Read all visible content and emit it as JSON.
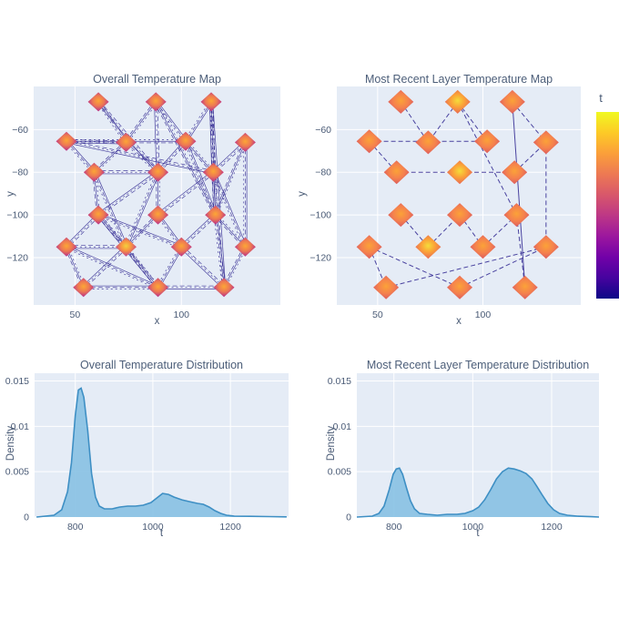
{
  "figure": {
    "background": "#ffffff",
    "plot_bg": "#e5ecf6",
    "grid_color": "#ffffff",
    "title_color": "#4c5e79",
    "tick_color": "#4a5b76",
    "edge_line_color": "#2e2590",
    "density_fill": "#87c1e3",
    "density_stroke": "#3e8fc4"
  },
  "colorbar": {
    "label": "t",
    "colors": [
      "#f0f921",
      "#fdca26",
      "#fb9f3a",
      "#ed7953",
      "#d8576b",
      "#bd3786",
      "#9c179e",
      "#7201a8",
      "#46039f",
      "#0d0887"
    ]
  },
  "chart_data": [
    {
      "id": "overall-map",
      "type": "scatter",
      "title": "Overall Temperature Map",
      "xlabel": "x",
      "ylabel": "y",
      "xlim": [
        30.6,
        146.5
      ],
      "ylim": [
        -142.2,
        -39.8
      ],
      "grid": true,
      "xticks": [
        {
          "v": 50,
          "label": "50"
        },
        {
          "v": 100,
          "label": "100"
        }
      ],
      "yticks": [
        {
          "v": -60,
          "label": "−60"
        },
        {
          "v": -80,
          "label": "−80"
        },
        {
          "v": -100,
          "label": "−100"
        },
        {
          "v": -120,
          "label": "−120"
        }
      ],
      "nodes": [
        [
          61,
          -47
        ],
        [
          88,
          -47
        ],
        [
          114,
          -47
        ],
        [
          46,
          -65.5
        ],
        [
          74,
          -66
        ],
        [
          102,
          -65.5
        ],
        [
          130,
          -66
        ],
        [
          59,
          -80
        ],
        [
          89,
          -80
        ],
        [
          115,
          -80
        ],
        [
          61,
          -100
        ],
        [
          89,
          -100
        ],
        [
          116,
          -100
        ],
        [
          46,
          -115
        ],
        [
          74,
          -115
        ],
        [
          100,
          -115
        ],
        [
          130,
          -115
        ],
        [
          54,
          -134
        ],
        [
          89,
          -134
        ],
        [
          120,
          -134
        ]
      ],
      "hot_nodes": [
        14
      ],
      "edges": [
        [
          0,
          4
        ],
        [
          0,
          8
        ],
        [
          1,
          4
        ],
        [
          1,
          5
        ],
        [
          1,
          8
        ],
        [
          1,
          12
        ],
        [
          2,
          5
        ],
        [
          2,
          9
        ],
        [
          2,
          12
        ],
        [
          2,
          19
        ],
        [
          3,
          4
        ],
        [
          3,
          5
        ],
        [
          3,
          7
        ],
        [
          3,
          9
        ],
        [
          4,
          7
        ],
        [
          4,
          8
        ],
        [
          5,
          8
        ],
        [
          5,
          9
        ],
        [
          5,
          12
        ],
        [
          6,
          9
        ],
        [
          6,
          12
        ],
        [
          6,
          16
        ],
        [
          7,
          8
        ],
        [
          7,
          10
        ],
        [
          7,
          14
        ],
        [
          8,
          10
        ],
        [
          8,
          11
        ],
        [
          8,
          14
        ],
        [
          9,
          11
        ],
        [
          9,
          12
        ],
        [
          9,
          16
        ],
        [
          10,
          13
        ],
        [
          10,
          14
        ],
        [
          10,
          15
        ],
        [
          10,
          18
        ],
        [
          11,
          14
        ],
        [
          11,
          15
        ],
        [
          12,
          15
        ],
        [
          12,
          16
        ],
        [
          12,
          19
        ],
        [
          13,
          14
        ],
        [
          13,
          17
        ],
        [
          13,
          18
        ],
        [
          14,
          17
        ],
        [
          14,
          18
        ],
        [
          15,
          18
        ],
        [
          15,
          19
        ],
        [
          16,
          19
        ],
        [
          17,
          18
        ],
        [
          18,
          19
        ]
      ],
      "marker_size": [
        11.5,
        10.5
      ],
      "marker_stops": [
        [
          0,
          "#fca636"
        ],
        [
          0.45,
          "#ed7953"
        ],
        [
          0.8,
          "#c5407e"
        ],
        [
          1,
          "#a62b96"
        ]
      ],
      "marker_hot_stops": [
        [
          0,
          "#f2d13c"
        ],
        [
          0.4,
          "#f89540"
        ],
        [
          0.78,
          "#d45579"
        ],
        [
          1,
          "#a62b96"
        ]
      ],
      "line_strands": 3
    },
    {
      "id": "recent-map",
      "type": "scatter",
      "title": "Most Recent Layer Temperature Map",
      "xlabel": "x",
      "ylabel": "y",
      "xlim": [
        30.6,
        146.5
      ],
      "ylim": [
        -142.2,
        -39.8
      ],
      "grid": true,
      "xticks": [
        {
          "v": 50,
          "label": "50"
        },
        {
          "v": 100,
          "label": "100"
        }
      ],
      "yticks": [
        {
          "v": -60,
          "label": "−60"
        },
        {
          "v": -80,
          "label": "−80"
        },
        {
          "v": -100,
          "label": "−100"
        },
        {
          "v": -120,
          "label": "−120"
        }
      ],
      "nodes": [
        [
          61,
          -47
        ],
        [
          88,
          -47
        ],
        [
          114,
          -47
        ],
        [
          46,
          -65.5
        ],
        [
          74,
          -66
        ],
        [
          102,
          -65.5
        ],
        [
          130,
          -66
        ],
        [
          59,
          -80
        ],
        [
          89,
          -80
        ],
        [
          115,
          -80
        ],
        [
          61,
          -100
        ],
        [
          89,
          -100
        ],
        [
          116,
          -100
        ],
        [
          46,
          -115
        ],
        [
          74,
          -115
        ],
        [
          100,
          -115
        ],
        [
          130,
          -115
        ],
        [
          54,
          -134
        ],
        [
          89,
          -134
        ],
        [
          120,
          -134
        ]
      ],
      "hot_nodes": [
        1,
        8,
        14
      ],
      "edges": [
        [
          0,
          4
        ],
        [
          1,
          4
        ],
        [
          1,
          5
        ],
        [
          1,
          12
        ],
        [
          2,
          6
        ],
        [
          2,
          19,
          "s"
        ],
        [
          3,
          5
        ],
        [
          3,
          7
        ],
        [
          6,
          16
        ],
        [
          7,
          8
        ],
        [
          8,
          9
        ],
        [
          9,
          6
        ],
        [
          10,
          14
        ],
        [
          11,
          15
        ],
        [
          12,
          19
        ],
        [
          13,
          17
        ],
        [
          13,
          18
        ],
        [
          14,
          11
        ],
        [
          15,
          12
        ],
        [
          17,
          16
        ],
        [
          18,
          16
        ]
      ],
      "marker_size": [
        14,
        13
      ],
      "marker_stops": [
        [
          0,
          "#fba238"
        ],
        [
          0.5,
          "#f5824d"
        ],
        [
          0.85,
          "#e0635c"
        ],
        [
          1,
          "#d8576b"
        ]
      ],
      "marker_hot_stops": [
        [
          0,
          "#f4dd3a"
        ],
        [
          0.45,
          "#fba238"
        ],
        [
          0.85,
          "#ea7252"
        ],
        [
          1,
          "#dd5e64"
        ]
      ],
      "line_strands": 1
    },
    {
      "id": "overall-dist",
      "type": "area",
      "title": "Overall Temperature Distribution",
      "xlabel": "t",
      "ylabel": "Density",
      "xlim": [
        695,
        1350
      ],
      "ylim": [
        0,
        0.01585
      ],
      "grid": true,
      "xticks": [
        {
          "v": 800,
          "label": "800"
        },
        {
          "v": 1000,
          "label": "1000"
        },
        {
          "v": 1200,
          "label": "1200"
        }
      ],
      "yticks": [
        {
          "v": 0,
          "label": "0"
        },
        {
          "v": 0.005,
          "label": "0.005"
        },
        {
          "v": 0.01,
          "label": "0.01"
        },
        {
          "v": 0.015,
          "label": "0.015"
        }
      ],
      "points": [
        [
          700,
          0
        ],
        [
          745,
          0.0002
        ],
        [
          765,
          0.0008
        ],
        [
          780,
          0.0028
        ],
        [
          790,
          0.006
        ],
        [
          800,
          0.0112
        ],
        [
          808,
          0.014
        ],
        [
          815,
          0.0142
        ],
        [
          822,
          0.0132
        ],
        [
          832,
          0.0095
        ],
        [
          842,
          0.0048
        ],
        [
          852,
          0.0022
        ],
        [
          862,
          0.0012
        ],
        [
          875,
          0.0009
        ],
        [
          895,
          0.0009
        ],
        [
          915,
          0.0011
        ],
        [
          935,
          0.0012
        ],
        [
          955,
          0.0012
        ],
        [
          975,
          0.0013
        ],
        [
          995,
          0.0016
        ],
        [
          1010,
          0.0021
        ],
        [
          1025,
          0.0026
        ],
        [
          1040,
          0.0025
        ],
        [
          1055,
          0.0022
        ],
        [
          1075,
          0.0019
        ],
        [
          1095,
          0.0017
        ],
        [
          1115,
          0.0015
        ],
        [
          1130,
          0.0014
        ],
        [
          1145,
          0.0011
        ],
        [
          1160,
          0.0007
        ],
        [
          1175,
          0.0004
        ],
        [
          1190,
          0.0002
        ],
        [
          1210,
          0.0001
        ],
        [
          1250,
          8e-05
        ],
        [
          1300,
          5e-05
        ],
        [
          1345,
          2e-05
        ]
      ]
    },
    {
      "id": "recent-dist",
      "type": "area",
      "title": "Most Recent Layer Temperature Distribution",
      "xlabel": "t",
      "ylabel": "Density",
      "xlim": [
        706,
        1320
      ],
      "ylim": [
        0,
        0.01585
      ],
      "grid": true,
      "xticks": [
        {
          "v": 800,
          "label": "800"
        },
        {
          "v": 1000,
          "label": "1000"
        },
        {
          "v": 1200,
          "label": "1200"
        }
      ],
      "yticks": [
        {
          "v": 0,
          "label": "0"
        },
        {
          "v": 0.005,
          "label": "0.005"
        },
        {
          "v": 0.01,
          "label": "0.01"
        },
        {
          "v": 0.015,
          "label": "0.015"
        }
      ],
      "points": [
        [
          706,
          0
        ],
        [
          745,
          0.0001
        ],
        [
          762,
          0.0004
        ],
        [
          775,
          0.0012
        ],
        [
          788,
          0.003
        ],
        [
          798,
          0.0047
        ],
        [
          806,
          0.0053
        ],
        [
          814,
          0.0054
        ],
        [
          822,
          0.0047
        ],
        [
          832,
          0.0032
        ],
        [
          842,
          0.0018
        ],
        [
          852,
          0.0009
        ],
        [
          865,
          0.0004
        ],
        [
          885,
          0.0003
        ],
        [
          910,
          0.0002
        ],
        [
          935,
          0.0003
        ],
        [
          960,
          0.0003
        ],
        [
          980,
          0.0004
        ],
        [
          1000,
          0.0007
        ],
        [
          1015,
          0.0011
        ],
        [
          1030,
          0.0019
        ],
        [
          1045,
          0.003
        ],
        [
          1060,
          0.0042
        ],
        [
          1075,
          0.005
        ],
        [
          1090,
          0.0054
        ],
        [
          1105,
          0.0053
        ],
        [
          1120,
          0.0051
        ],
        [
          1135,
          0.0048
        ],
        [
          1150,
          0.0042
        ],
        [
          1162,
          0.0034
        ],
        [
          1175,
          0.0025
        ],
        [
          1190,
          0.0015
        ],
        [
          1205,
          0.0008
        ],
        [
          1220,
          0.0004
        ],
        [
          1240,
          0.0002
        ],
        [
          1265,
          0.0001
        ],
        [
          1300,
          4e-05
        ],
        [
          1320,
          0
        ]
      ]
    }
  ]
}
